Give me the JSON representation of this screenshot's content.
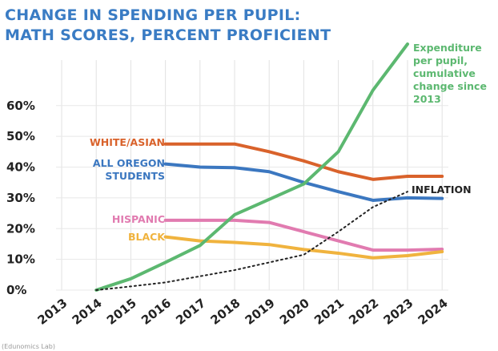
{
  "chart_data": {
    "type": "line",
    "title": "CHANGE IN SPENDING PER PUPIL:",
    "subtitle": "MATH SCORES, PERCENT PROFICIENT",
    "source": "(Edunomics Lab)",
    "categories": [
      "2013",
      "2014",
      "2015",
      "2016",
      "2017",
      "2018",
      "2019",
      "2020",
      "2021",
      "2022",
      "2023",
      "2024"
    ],
    "ylim": [
      0,
      80
    ],
    "yticks": [
      {
        "value": 0,
        "label": "0%"
      },
      {
        "value": 10,
        "label": "10%"
      },
      {
        "value": 20,
        "label": "20%"
      },
      {
        "value": 30,
        "label": "30%"
      },
      {
        "value": 40,
        "label": "40%"
      },
      {
        "value": 50,
        "label": "50%"
      },
      {
        "value": 60,
        "label": "60%"
      }
    ],
    "grid": true,
    "series": [
      {
        "name": "WHITE/ASIAN",
        "color": "#d9622b",
        "values": [
          null,
          null,
          null,
          47.5,
          47.5,
          47.5,
          45,
          42,
          38.5,
          36,
          37,
          37
        ]
      },
      {
        "name": "ALL OREGON STUDENTS",
        "color": "#3b77c0",
        "values": [
          null,
          null,
          null,
          41,
          40,
          39.8,
          38.5,
          35,
          32,
          29.2,
          30,
          29.8
        ]
      },
      {
        "name": "HISPANIC",
        "color": "#e17bb0",
        "values": [
          null,
          null,
          null,
          22.7,
          22.7,
          22.7,
          22,
          19,
          16,
          13,
          13,
          13.3
        ]
      },
      {
        "name": "BLACK",
        "color": "#f0b33e",
        "values": [
          null,
          null,
          null,
          17.3,
          16,
          15.5,
          14.8,
          13.2,
          12,
          10.5,
          11.2,
          12.5
        ]
      },
      {
        "name": "Expenditure per pupil, cumulative change since 2013",
        "color": "#5cb870",
        "values": [
          null,
          0,
          3.7,
          9,
          14.5,
          24.5,
          29.5,
          34.5,
          45,
          65,
          80,
          null
        ]
      },
      {
        "name": "INFLATION",
        "color": "#222222",
        "dashed": true,
        "values": [
          null,
          0,
          1.2,
          2.5,
          4.5,
          6.5,
          9,
          11.5,
          19,
          27,
          32,
          null
        ]
      }
    ]
  }
}
